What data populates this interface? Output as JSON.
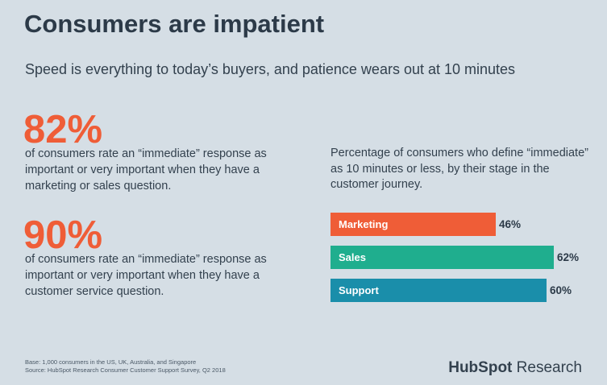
{
  "header": {
    "title": "Consumers are impatient",
    "subtitle": "Speed is everything to today’s buyers, and patience wears out at 10 minutes"
  },
  "stats": [
    {
      "value": "82%",
      "text": "of consumers rate an “immediate” response as important or very important when they have a marketing or sales question."
    },
    {
      "value": "90%",
      "text": "of consumers rate an “immediate” response as important or very important when they have a customer service question."
    }
  ],
  "chart_data": {
    "type": "bar",
    "orientation": "horizontal",
    "title": "Percentage of consumers who define “immediate” as 10 minutes or less, by their stage in the customer journey.",
    "categories": [
      "Marketing",
      "Sales",
      "Support"
    ],
    "values": [
      46,
      62,
      60
    ],
    "value_labels": [
      "46%",
      "62%",
      "60%"
    ],
    "colors": [
      "#ef5d37",
      "#1fae8e",
      "#1a8eaa"
    ],
    "xlim": [
      0,
      100
    ],
    "grid": false,
    "legend": "none"
  },
  "footer": {
    "base": "Base: 1,000 consumers in the US, UK, Australia, and Singapore",
    "source": "Source: HubSpot Research Consumer Customer Support Survey, Q2 2018",
    "brand_name": "HubSpot",
    "brand_suffix": " Research"
  },
  "colors": {
    "background": "#d5dee5",
    "accent": "#ef5d37",
    "text": "#2c3a48"
  }
}
